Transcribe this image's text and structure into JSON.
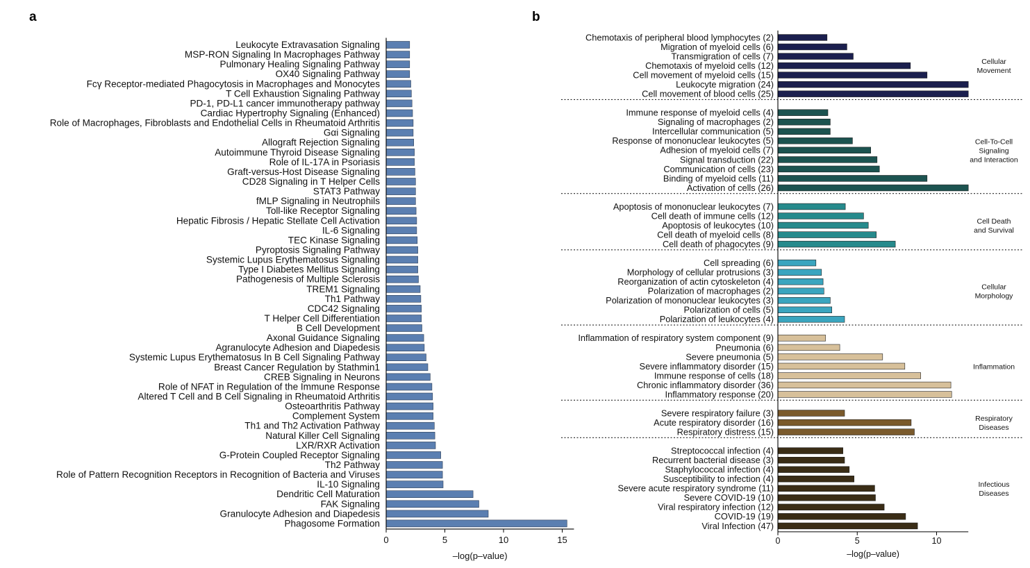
{
  "panel_labels": {
    "a": "a",
    "b": "b"
  },
  "chart_data": [
    {
      "panel": "a",
      "type": "bar",
      "orientation": "horizontal",
      "xlabel": "–log(p–value)",
      "xlim": [
        0,
        16
      ],
      "xticks": [
        0,
        5,
        10,
        15
      ],
      "color": "#5b7fb1",
      "categories": [
        "Leukocyte Extravasation Signaling",
        "MSP-RON Signaling In Macrophages Pathway",
        "Pulmonary Healing Signaling Pathway",
        "OX40 Signaling Pathway",
        "Fcγ Receptor-mediated Phagocytosis in Macrophages and Monocytes",
        "T Cell Exhaustion Signaling Pathway",
        "PD-1, PD-L1 cancer immunotherapy pathway",
        "Cardiac Hypertrophy Signaling (Enhanced)",
        "Role of Macrophages, Fibroblasts and Endothelial Cells in Rheumatoid Arthritis",
        "Gαi Signaling",
        "Allograft Rejection Signaling",
        "Autoimmune Thyroid Disease Signaling",
        "Role of IL-17A in Psoriasis",
        "Graft-versus-Host Disease Signaling",
        "CD28 Signaling in T Helper Cells",
        "STAT3 Pathway",
        "fMLP Signaling in Neutrophils",
        "Toll-like Receptor Signaling",
        "Hepatic Fibrosis / Hepatic Stellate Cell Activation",
        "IL-6 Signaling",
        "TEC Kinase Signaling",
        "Pyroptosis Signaling Pathway",
        "Systemic Lupus Erythematosus Signaling",
        "Type I Diabetes Mellitus Signaling",
        "Pathogenesis of Multiple Sclerosis",
        "TREM1 Signaling",
        "Th1 Pathway",
        "CDC42 Signaling",
        "T Helper Cell Differentiation",
        "B Cell Development",
        "Axonal Guidance Signaling",
        "Agranulocyte Adhesion and Diapedesis",
        "Systemic Lupus Erythematosus In B Cell Signaling Pathway",
        "Breast Cancer Regulation by Stathmin1",
        "CREB Signaling in Neurons",
        "Role of NFAT in Regulation of the Immune Response",
        "Altered T Cell and B Cell Signaling in Rheumatoid Arthritis",
        "Osteoarthritis Pathway",
        "Complement System",
        "Th1 and Th2 Activation Pathway",
        "Natural Killer Cell Signaling",
        "LXR/RXR Activation",
        "G-Protein Coupled Receptor Signaling",
        "Th2 Pathway",
        "Role of Pattern Recognition Receptors in Recognition of Bacteria and Viruses",
        "IL-10 Signaling",
        "Dendritic Cell Maturation",
        "FAK Signaling",
        "Granulocyte Adhesion and Diapedesis",
        "Phagosome Formation"
      ],
      "values": [
        2.0,
        2.0,
        2.0,
        2.0,
        2.1,
        2.15,
        2.2,
        2.25,
        2.3,
        2.3,
        2.35,
        2.4,
        2.4,
        2.45,
        2.5,
        2.5,
        2.5,
        2.55,
        2.6,
        2.6,
        2.65,
        2.7,
        2.7,
        2.7,
        2.75,
        2.9,
        2.95,
        3.0,
        3.0,
        3.05,
        3.2,
        3.25,
        3.4,
        3.55,
        3.75,
        3.9,
        3.95,
        4.0,
        4.0,
        4.1,
        4.15,
        4.2,
        4.65,
        4.8,
        4.8,
        4.85,
        7.4,
        7.9,
        8.7,
        15.4
      ]
    },
    {
      "panel": "b",
      "type": "bar",
      "orientation": "horizontal",
      "xlabel": "–log(p–value)",
      "xlim": [
        0,
        12
      ],
      "xticks": [
        0,
        5,
        10
      ],
      "groups": [
        {
          "name": "Cellular Movement",
          "name_lines": [
            "Cellular",
            "Movement"
          ],
          "color": "#1b1f4e",
          "categories": [
            "Chemotaxis of peripheral blood lymphocytes (2)",
            "Migration of myeloid cells (6)",
            "Transmigration of cells (7)",
            "Chemotaxis of myeloid cells (12)",
            "Cell movement of myeloid cells (15)",
            "Leukocyte migration (24)",
            "Cell movement of blood cells (25)"
          ],
          "values": [
            3.1,
            4.35,
            4.75,
            8.35,
            9.4,
            12.0,
            12.0
          ]
        },
        {
          "name": "Cell-To-Cell Signaling and Interaction",
          "name_lines": [
            "Cell-To-Cell",
            "Signaling",
            "and Interaction"
          ],
          "color": "#1c5350",
          "categories": [
            "Immune response of myeloid cells (4)",
            "Signaling of macrophages (2)",
            "Intercellular communication (5)",
            "Response of mononuclear leukocytes (5)",
            "Adhesion of myeloid cells (7)",
            "Signal transduction (22)",
            "Communication of cells (23)",
            "Binding of myeloid cells (11)",
            "Activation of cells (26)"
          ],
          "values": [
            3.15,
            3.3,
            3.3,
            4.7,
            5.85,
            6.25,
            6.4,
            9.4,
            12.0
          ]
        },
        {
          "name": "Cell Death and Survival",
          "name_lines": [
            "Cell Death",
            "and Survival"
          ],
          "color": "#268a8c",
          "categories": [
            "Apoptosis of mononuclear leukocytes (7)",
            "Cell death of immune cells (12)",
            "Apoptosis of leukocytes (10)",
            "Cell death of myeloid cells (8)",
            "Cell death of phagocytes (9)"
          ],
          "values": [
            4.25,
            5.4,
            5.7,
            6.2,
            7.4
          ]
        },
        {
          "name": "Cellular Morphology",
          "name_lines": [
            "Cellular",
            "Morphology"
          ],
          "color": "#3aa5bf",
          "categories": [
            "Cell spreading (6)",
            "Morphology of cellular protrusions (3)",
            "Reorganization of actin cytoskeleton (4)",
            "Polarization of macrophages (2)",
            "Polarization of mononuclear leukocytes (3)",
            "Polarization of cells (5)",
            "Polarization of leukocytes (4)"
          ],
          "values": [
            2.4,
            2.75,
            2.85,
            2.9,
            3.3,
            3.4,
            4.2
          ]
        },
        {
          "name": "Inflammation",
          "name_lines": [
            "Inflammation"
          ],
          "color": "#d7c09a",
          "categories": [
            "Inflammation of respiratory system component (9)",
            "Pneumonia (6)",
            "Severe pneumonia (5)",
            "Severe inflammatory disorder (15)",
            "Immune response of cells (18)",
            "Chronic inflammatory disorder (36)",
            "Inflammatory response (20)"
          ],
          "values": [
            3.0,
            3.9,
            6.6,
            8.0,
            9.0,
            10.9,
            10.95
          ]
        },
        {
          "name": "Respiratory Diseases",
          "name_lines": [
            "Respiratory",
            "Diseases"
          ],
          "color": "#7a5a2c",
          "categories": [
            "Severe respiratory failure (3)",
            "Acute respiratory disorder (16)",
            "Respiratory distress (15)"
          ],
          "values": [
            4.2,
            8.4,
            8.6
          ]
        },
        {
          "name": "Infectious Diseases",
          "name_lines": [
            "Infectious",
            "Diseases"
          ],
          "color": "#3a2d16",
          "categories": [
            "Streptococcal infection (4)",
            "Recurrent bacterial disease (3)",
            "Staphylococcal infection (4)",
            "Susceptibility to infection (4)",
            "Severe acute respiratory syndrome (11)",
            "Severe COVID-19 (10)",
            "Viral respiratory infection (12)",
            "COVID-19 (19)",
            "Viral Infection (47)"
          ],
          "values": [
            4.1,
            4.2,
            4.5,
            4.8,
            6.1,
            6.15,
            6.7,
            8.05,
            8.8
          ]
        }
      ]
    }
  ]
}
